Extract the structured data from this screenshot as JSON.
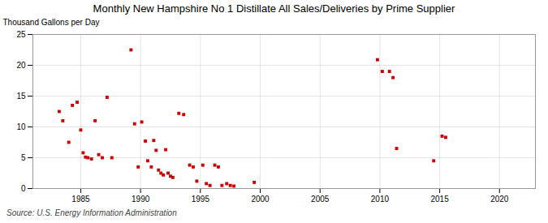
{
  "chart_data": {
    "type": "scatter",
    "title": "Monthly New Hampshire No 1 Distillate All Sales/Deliveries by Prime Supplier",
    "ylabel": "Thousand Gallons per Day",
    "annotations": [
      "Source: U.S. Energy Information Administration"
    ],
    "color": "#cc0000",
    "marker": "square",
    "grid": true,
    "xlim": [
      1981,
      2023
    ],
    "ylim": [
      0,
      25
    ],
    "xticks": [
      1985,
      1990,
      1995,
      2000,
      2005,
      2010,
      2015,
      2020
    ],
    "yticks": [
      0,
      5,
      10,
      15,
      20,
      25
    ],
    "x": [
      1983.2,
      1983.5,
      1984.0,
      1984.3,
      1984.7,
      1985.0,
      1985.2,
      1985.4,
      1985.6,
      1985.9,
      1986.2,
      1986.5,
      1986.8,
      1987.2,
      1987.6,
      1989.2,
      1989.5,
      1989.8,
      1990.1,
      1990.4,
      1990.6,
      1990.9,
      1991.1,
      1991.3,
      1991.5,
      1991.7,
      1991.9,
      1992.1,
      1992.3,
      1992.5,
      1992.7,
      1993.2,
      1993.6,
      1994.1,
      1994.4,
      1994.7,
      1995.2,
      1995.5,
      1995.8,
      1996.2,
      1996.5,
      1996.8,
      1997.2,
      1997.5,
      1997.8,
      1999.5,
      2009.8,
      2010.2,
      2010.8,
      2011.1,
      2011.4,
      2014.5,
      2015.2,
      2015.5
    ],
    "values": [
      12.5,
      11.0,
      7.5,
      13.5,
      14.0,
      9.5,
      5.8,
      5.1,
      5.0,
      4.8,
      11.0,
      5.5,
      5.0,
      14.8,
      5.0,
      22.5,
      10.5,
      3.5,
      10.8,
      7.7,
      4.5,
      3.5,
      7.8,
      6.2,
      3.0,
      2.5,
      2.2,
      6.3,
      2.5,
      2.0,
      1.8,
      12.2,
      12.0,
      3.8,
      3.5,
      1.2,
      3.8,
      0.8,
      0.5,
      3.8,
      3.5,
      0.5,
      0.8,
      0.5,
      0.4,
      1.0,
      20.9,
      19.0,
      19.0,
      18.0,
      6.5,
      4.5,
      8.5,
      8.3
    ]
  }
}
